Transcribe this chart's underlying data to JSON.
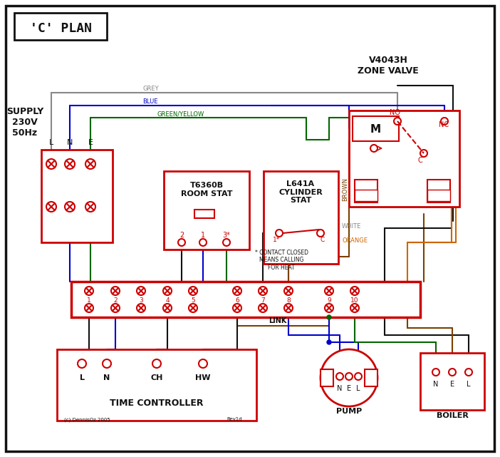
{
  "bg_color": "#f0f0f0",
  "border_color": "#222222",
  "red": "#cc0000",
  "dark_red": "#aa0000",
  "blue": "#0000cc",
  "green": "#006600",
  "brown": "#7a4000",
  "orange": "#cc6600",
  "grey": "#888888",
  "black": "#111111",
  "white": "#ffffff",
  "title": "'C' PLAN",
  "supply_label": "SUPPLY\n230V\n50Hz",
  "zone_valve_label": "V4043H\nZONE VALVE",
  "room_stat_label": "T6360B\nROOM STAT",
  "cyl_stat_label": "L641A\nCYLINDER\nSTAT",
  "time_ctrl_label": "TIME CONTROLLER",
  "pump_label": "PUMP",
  "boiler_label": "BOILER",
  "link_label": "LINK",
  "contact_note": "* CONTACT CLOSED\nMEANS CALLING\nFOR HEAT"
}
